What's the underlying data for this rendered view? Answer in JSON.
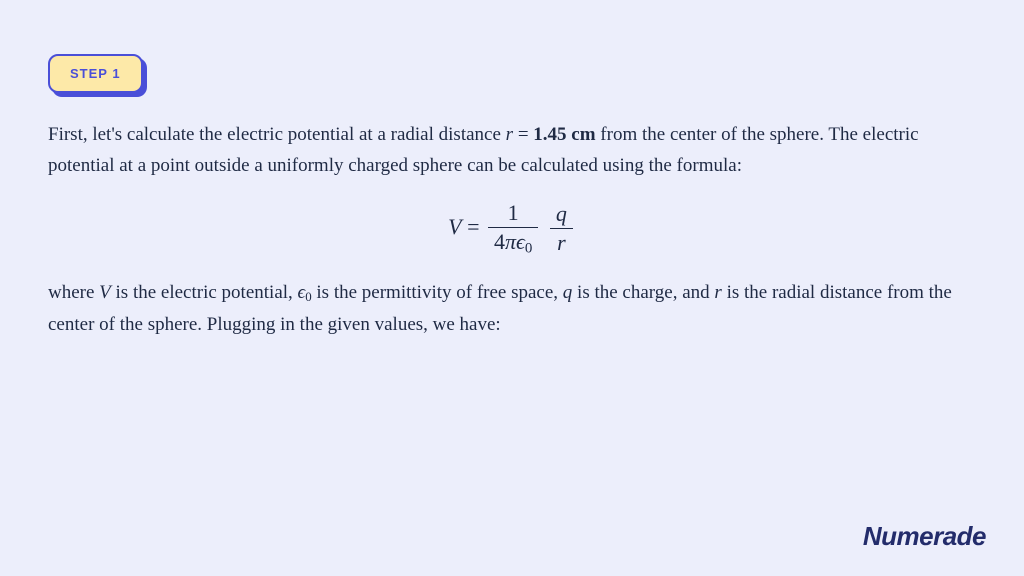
{
  "page": {
    "background_color": "#eceefb",
    "text_color": "#1f2a44",
    "accent_color": "#4a4fd8",
    "badge_fill": "#fde9a8"
  },
  "step": {
    "label": "STEP 1"
  },
  "para1": {
    "t1": "First, let's calculate the electric potential at a radial distance ",
    "r_var": "r",
    "eq": " = ",
    "r_val": "1.45 cm",
    "t2": " from the center of the sphere. The electric potential at a point outside a uniformly charged sphere can be calculated using the formula:"
  },
  "formula": {
    "V": "V",
    "equals": " = ",
    "frac1_num": "1",
    "frac1_den_a": "4",
    "frac1_den_pi": "π",
    "frac1_den_eps": "ϵ",
    "frac1_den_sub": "0",
    "frac2_num": "q",
    "frac2_den": "r"
  },
  "para2": {
    "t1": "where ",
    "V": "V",
    "t2": " is the electric potential, ",
    "eps": "ϵ",
    "eps_sub": "0",
    "t3": " is the permittivity of free space, ",
    "q": "q",
    "t4": " is the charge, and ",
    "r": "r",
    "t5": " is the radial distance from the center of the sphere. Plugging in the given values, we have:"
  },
  "brand": {
    "name": "Numerade"
  }
}
